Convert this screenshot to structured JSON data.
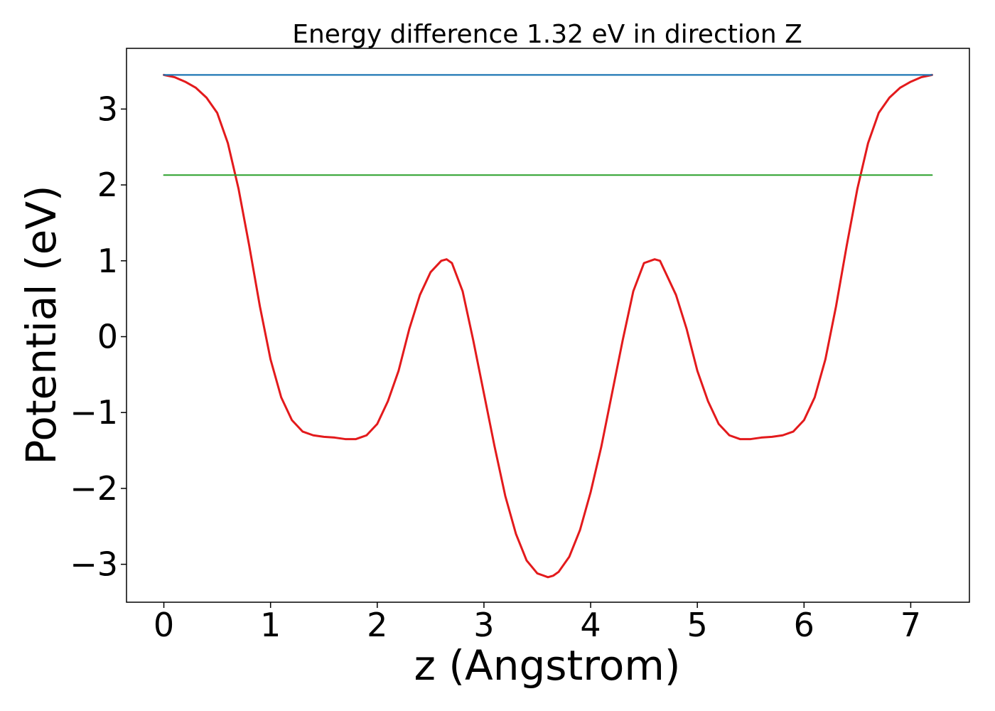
{
  "chart_data": {
    "type": "line",
    "title": "Energy difference 1.32 eV in direction Z",
    "xlabel": "z (Angstrom)",
    "ylabel": "Potential (eV)",
    "xlim": [
      -0.35,
      7.55
    ],
    "ylim": [
      -3.5,
      3.8
    ],
    "x_ticks": [
      0,
      1,
      2,
      3,
      4,
      5,
      6,
      7
    ],
    "x_tick_labels": [
      "0",
      "1",
      "2",
      "3",
      "4",
      "5",
      "6",
      "7"
    ],
    "y_ticks": [
      -3,
      -2,
      -1,
      0,
      1,
      2,
      3
    ],
    "y_tick_labels": [
      "−3",
      "−2",
      "−1",
      "0",
      "1",
      "2",
      "3"
    ],
    "grid": false,
    "colors": {
      "potential": "#e31a1c",
      "upper": "#1f77b4",
      "lower": "#2ca02c"
    },
    "series": [
      {
        "key": "potential",
        "x": [
          0.0,
          0.1,
          0.2,
          0.3,
          0.4,
          0.5,
          0.6,
          0.7,
          0.8,
          0.9,
          1.0,
          1.1,
          1.2,
          1.3,
          1.4,
          1.5,
          1.6,
          1.7,
          1.8,
          1.9,
          2.0,
          2.1,
          2.2,
          2.3,
          2.4,
          2.5,
          2.6,
          2.65,
          2.7,
          2.8,
          2.9,
          3.0,
          3.1,
          3.2,
          3.3,
          3.4,
          3.5,
          3.6,
          3.65,
          3.7,
          3.8,
          3.9,
          4.0,
          4.1,
          4.2,
          4.3,
          4.4,
          4.5,
          4.6,
          4.65,
          4.7,
          4.8,
          4.9,
          5.0,
          5.1,
          5.2,
          5.3,
          5.4,
          5.5,
          5.6,
          5.7,
          5.8,
          5.9,
          6.0,
          6.1,
          6.2,
          6.3,
          6.4,
          6.5,
          6.6,
          6.7,
          6.8,
          6.9,
          7.0,
          7.1,
          7.2
        ],
        "values": [
          3.45,
          3.42,
          3.36,
          3.28,
          3.15,
          2.95,
          2.55,
          1.95,
          1.2,
          0.4,
          -0.3,
          -0.8,
          -1.1,
          -1.25,
          -1.3,
          -1.32,
          -1.33,
          -1.35,
          -1.35,
          -1.3,
          -1.15,
          -0.85,
          -0.45,
          0.1,
          0.55,
          0.85,
          1.0,
          1.02,
          0.97,
          0.6,
          -0.05,
          -0.75,
          -1.45,
          -2.1,
          -2.6,
          -2.95,
          -3.12,
          -3.17,
          -3.15,
          -3.1,
          -2.9,
          -2.55,
          -2.05,
          -1.45,
          -0.75,
          -0.05,
          0.6,
          0.97,
          1.02,
          1.0,
          0.85,
          0.55,
          0.1,
          -0.45,
          -0.85,
          -1.15,
          -1.3,
          -1.35,
          -1.35,
          -1.33,
          -1.32,
          -1.3,
          -1.25,
          -1.1,
          -0.8,
          -0.3,
          0.4,
          1.2,
          1.95,
          2.55,
          2.95,
          3.15,
          3.28,
          3.36,
          3.42,
          3.45
        ]
      },
      {
        "key": "upper",
        "x": [
          0.0,
          7.2
        ],
        "values": [
          3.45,
          3.45
        ]
      },
      {
        "key": "lower",
        "x": [
          0.0,
          7.2
        ],
        "values": [
          2.13,
          2.13
        ]
      }
    ]
  }
}
